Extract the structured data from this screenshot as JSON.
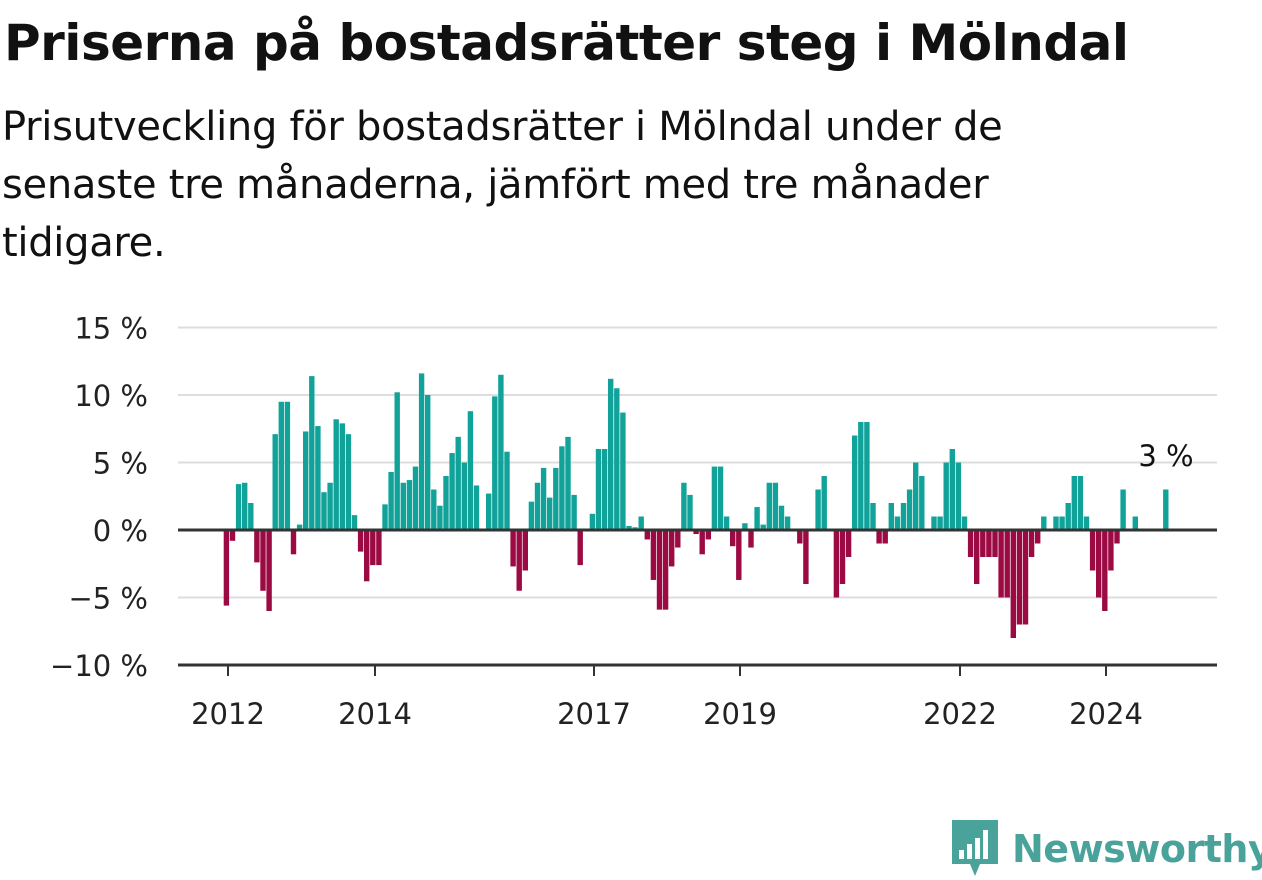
{
  "header": {
    "title": "Priserna på bostadsrätter steg i Mölndal",
    "subtitle": "Prisutveckling för bostadsrätter i Mölndal under de senaste tre månaderna, jämfört med tre månader tidigare."
  },
  "brand": {
    "name": "Newsworthy",
    "icon": "newsworthy-logo-icon",
    "color": "#4aa39b"
  },
  "colors": {
    "positive": "#11a39a",
    "negative": "#9b0a43",
    "grid": "#dddddd",
    "axis": "#333333"
  },
  "chart_data": {
    "type": "bar",
    "x_tick_labels": [
      "2012",
      "2014",
      "2017",
      "2019",
      "2022",
      "2024"
    ],
    "y_tick_labels": [
      "15 %",
      "10 %",
      "5 %",
      "0 %",
      "−5 %",
      "−10 %"
    ],
    "ylim": [
      -10,
      15
    ],
    "grid": true,
    "annotation": {
      "text": "3 %",
      "value": 3
    },
    "series": [
      {
        "start": "2012-01",
        "values": [
          -5.6,
          -0.8,
          3.4,
          3.5,
          2.0,
          -2.4,
          -4.5,
          -6.0,
          7.1,
          9.5,
          9.5,
          -1.8,
          0.4,
          7.3,
          11.4,
          7.7,
          2.8,
          3.5,
          8.2,
          7.9,
          7.1,
          1.1,
          -1.6,
          -3.8,
          -2.6,
          -2.6,
          1.9,
          4.3,
          10.2,
          3.5,
          3.7,
          4.7,
          11.6,
          10.0,
          3.0,
          1.8,
          4.0,
          5.7,
          6.9,
          5.0,
          8.8,
          3.3,
          null,
          2.7,
          9.9,
          11.5,
          5.8,
          -2.7,
          -4.5,
          -3.0,
          2.1,
          3.5,
          4.6,
          2.4,
          4.6,
          6.2,
          6.9,
          2.6,
          -2.6,
          null,
          1.2,
          6.0,
          6.0,
          11.2,
          10.5,
          8.7,
          0.3,
          0.2,
          1.0,
          -0.7,
          -3.7,
          -5.9,
          -5.9,
          -2.7,
          -1.3,
          3.5,
          2.6,
          -0.3,
          -1.8,
          -0.7,
          4.7,
          4.7,
          1.0,
          -1.2,
          -3.7,
          0.5,
          -1.3,
          1.7,
          0.4,
          3.5,
          3.5,
          1.8,
          1.0,
          null,
          -1.0,
          -4.0,
          null,
          3.0,
          4.0,
          null,
          -5.0,
          -4.0,
          -2.0,
          7.0,
          8.0,
          8.0,
          2.0,
          -1.0,
          -1.0,
          2.0,
          1.0,
          2.0,
          3.0,
          5.0,
          4.0,
          null,
          1.0,
          1.0,
          5.0,
          6.0,
          5.0,
          1.0,
          -2.0,
          -4.0,
          -2.0,
          -2.0,
          -2.0,
          -5.0,
          -5.0,
          -8.0,
          -7.0,
          -7.0,
          -2.0,
          -1.0,
          1.0,
          null,
          1.0,
          1.0,
          2.0,
          4.0,
          4.0,
          1.0,
          -3.0,
          -5.0,
          -6.0,
          -3.0,
          -1.0,
          3.0,
          null,
          1.0,
          null,
          null,
          null,
          null,
          3.0
        ]
      }
    ]
  }
}
